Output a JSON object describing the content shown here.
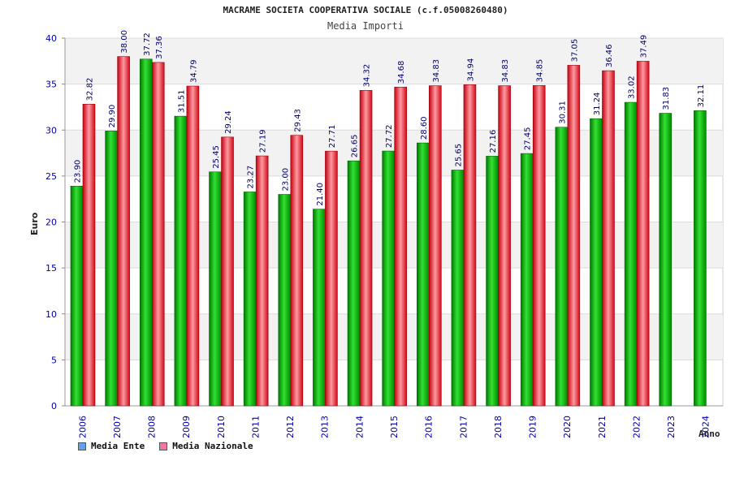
{
  "chart_data": {
    "type": "bar",
    "title": "MACRAME SOCIETA COOPERATIVA SOCIALE (c.f.05008260480)",
    "subtitle": "Media Importi",
    "xlabel": "Anno",
    "ylabel": "Euro",
    "ylim": [
      0,
      40
    ],
    "yticks": [
      "0",
      "5",
      "10",
      "15",
      "20",
      "25",
      "30",
      "35",
      "40"
    ],
    "categories": [
      "2006",
      "2007",
      "2008",
      "2009",
      "2010",
      "2011",
      "2012",
      "2013",
      "2014",
      "2015",
      "2016",
      "2017",
      "2018",
      "2019",
      "2020",
      "2021",
      "2022",
      "2023",
      "2024"
    ],
    "series": [
      {
        "name": "Media Ente",
        "color": "#00b000",
        "legend_color": "#5fa3e8",
        "values": [
          23.9,
          29.9,
          37.72,
          31.51,
          25.45,
          23.27,
          23.0,
          21.4,
          26.65,
          27.72,
          28.6,
          25.65,
          27.16,
          27.45,
          30.31,
          31.24,
          33.02,
          31.83,
          32.11
        ],
        "labels": [
          "23.90",
          "29.90",
          "37.72",
          "31.51",
          "25.45",
          "23.27",
          "23.00",
          "21.40",
          "26.65",
          "27.72",
          "28.60",
          "25.65",
          "27.16",
          "27.45",
          "30.31",
          "31.24",
          "33.02",
          "31.83",
          "32.11"
        ]
      },
      {
        "name": "Media Nazionale",
        "color": "#e8182a",
        "legend_color": "#e87aa8",
        "values": [
          32.82,
          38.0,
          37.36,
          34.79,
          29.24,
          27.19,
          29.43,
          27.71,
          34.32,
          34.68,
          34.83,
          34.94,
          34.83,
          34.85,
          37.05,
          36.46,
          37.49,
          null,
          null
        ],
        "labels": [
          "32.82",
          "38.00",
          "37.36",
          "34.79",
          "29.24",
          "27.19",
          "29.43",
          "27.71",
          "34.32",
          "34.68",
          "34.83",
          "34.94",
          "34.83",
          "34.85",
          "37.05",
          "36.46",
          "37.49",
          null,
          null
        ]
      }
    ],
    "legend_position": "bottom-left",
    "grid": true
  }
}
